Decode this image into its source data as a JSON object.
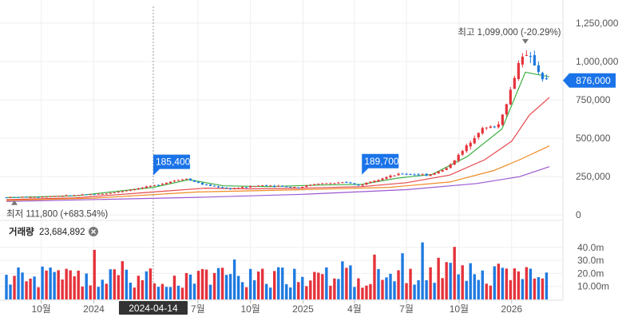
{
  "chart_data": {
    "type": "candlestick",
    "price_axis": {
      "ticks": [
        0,
        250000,
        500000,
        750000,
        1000000,
        1250000
      ],
      "tick_labels": [
        "0",
        "250,000",
        "500,000",
        "750,000",
        "1,000,000",
        "1,250,000"
      ],
      "range": [
        -30000,
        1400000
      ]
    },
    "volume_axis": {
      "ticks": [
        10000000,
        20000000,
        30000000,
        40000000
      ],
      "tick_labels": [
        "10.00m",
        "20.0m",
        "30.0m",
        "40.0m"
      ],
      "range": [
        0,
        46000000
      ]
    },
    "x_labels": [
      "10월",
      "2024",
      "7월",
      "10월",
      "2025",
      "4월",
      "7월",
      "10월",
      "2026"
    ],
    "x_label_dates": [
      "2023-10-01",
      "2024-01-01",
      "2024-07-01",
      "2024-10-01",
      "2025-01-01",
      "2025-04-01",
      "2025-07-01",
      "2025-10-01",
      "2026-01-01"
    ],
    "x_range": [
      "2023-08-01",
      "2026-03-15"
    ],
    "crosshair_date_label": "2024-04-14",
    "crosshair_date": "2024-04-14",
    "current_price_label": "876,000",
    "current_price": 876000,
    "high_annotation": "최고  1,099,000 (-20.29%)",
    "high_value": 1099000,
    "high_date": "2026-01-25",
    "low_annotation": "최저  111,800 (+683.54%)",
    "low_value": 111800,
    "low_date": "2023-08-15",
    "flags": [
      {
        "label": "185,400",
        "value": 185400,
        "date": "2024-04-14"
      },
      {
        "label": "189,700",
        "value": 189700,
        "date": "2025-04-14"
      }
    ],
    "volume_title": "거래량",
    "volume_value": "23,684,892",
    "price_keypoints": [
      [
        "2023-08-01",
        115000
      ],
      [
        "2023-10-01",
        118000
      ],
      [
        "2023-12-01",
        128000
      ],
      [
        "2024-02-01",
        140000
      ],
      [
        "2024-04-14",
        185000
      ],
      [
        "2024-06-15",
        240000
      ],
      [
        "2024-07-15",
        200000
      ],
      [
        "2024-09-01",
        170000
      ],
      [
        "2024-11-01",
        195000
      ],
      [
        "2025-01-01",
        180000
      ],
      [
        "2025-02-01",
        205000
      ],
      [
        "2025-04-01",
        210000
      ],
      [
        "2025-04-14",
        190000
      ],
      [
        "2025-05-15",
        230000
      ],
      [
        "2025-07-01",
        270000
      ],
      [
        "2025-08-15",
        260000
      ],
      [
        "2025-09-15",
        300000
      ],
      [
        "2025-10-15",
        420000
      ],
      [
        "2025-11-15",
        560000
      ],
      [
        "2025-12-15",
        580000
      ],
      [
        "2026-01-01",
        750000
      ],
      [
        "2026-01-25",
        1050000
      ],
      [
        "2026-02-15",
        1000000
      ],
      [
        "2026-03-01",
        900000
      ],
      [
        "2026-03-08",
        876000
      ]
    ],
    "ma_series": [
      {
        "color": "#3cb043",
        "points": [
          [
            "2023-08-01",
            113000
          ],
          [
            "2023-12-01",
            125000
          ],
          [
            "2024-04-14",
            180000
          ],
          [
            "2024-06-15",
            230000
          ],
          [
            "2024-08-15",
            190000
          ],
          [
            "2024-11-01",
            185000
          ],
          [
            "2025-02-01",
            195000
          ],
          [
            "2025-04-14",
            200000
          ],
          [
            "2025-06-15",
            240000
          ],
          [
            "2025-08-15",
            265000
          ],
          [
            "2025-10-15",
            380000
          ],
          [
            "2025-12-15",
            560000
          ],
          [
            "2026-01-25",
            930000
          ],
          [
            "2026-03-08",
            900000
          ]
        ]
      },
      {
        "color": "#e5484d",
        "points": [
          [
            "2023-08-01",
            100000
          ],
          [
            "2023-12-01",
            112000
          ],
          [
            "2024-04-14",
            150000
          ],
          [
            "2024-07-15",
            175000
          ],
          [
            "2024-10-01",
            170000
          ],
          [
            "2025-01-01",
            175000
          ],
          [
            "2025-04-14",
            185000
          ],
          [
            "2025-07-01",
            210000
          ],
          [
            "2025-09-15",
            260000
          ],
          [
            "2025-11-15",
            360000
          ],
          [
            "2026-01-01",
            480000
          ],
          [
            "2026-02-01",
            650000
          ],
          [
            "2026-03-08",
            765000
          ]
        ]
      },
      {
        "color": "#f08a24",
        "points": [
          [
            "2023-08-01",
            95000
          ],
          [
            "2024-01-01",
            110000
          ],
          [
            "2024-07-01",
            150000
          ],
          [
            "2025-01-01",
            165000
          ],
          [
            "2025-06-01",
            180000
          ],
          [
            "2025-09-15",
            215000
          ],
          [
            "2025-12-01",
            290000
          ],
          [
            "2026-01-15",
            360000
          ],
          [
            "2026-03-08",
            450000
          ]
        ]
      },
      {
        "color": "#9b59d0",
        "points": [
          [
            "2023-08-01",
            88000
          ],
          [
            "2024-07-01",
            115000
          ],
          [
            "2025-01-01",
            135000
          ],
          [
            "2025-07-01",
            165000
          ],
          [
            "2025-11-01",
            205000
          ],
          [
            "2026-01-15",
            250000
          ],
          [
            "2026-03-08",
            315000
          ]
        ]
      }
    ]
  }
}
